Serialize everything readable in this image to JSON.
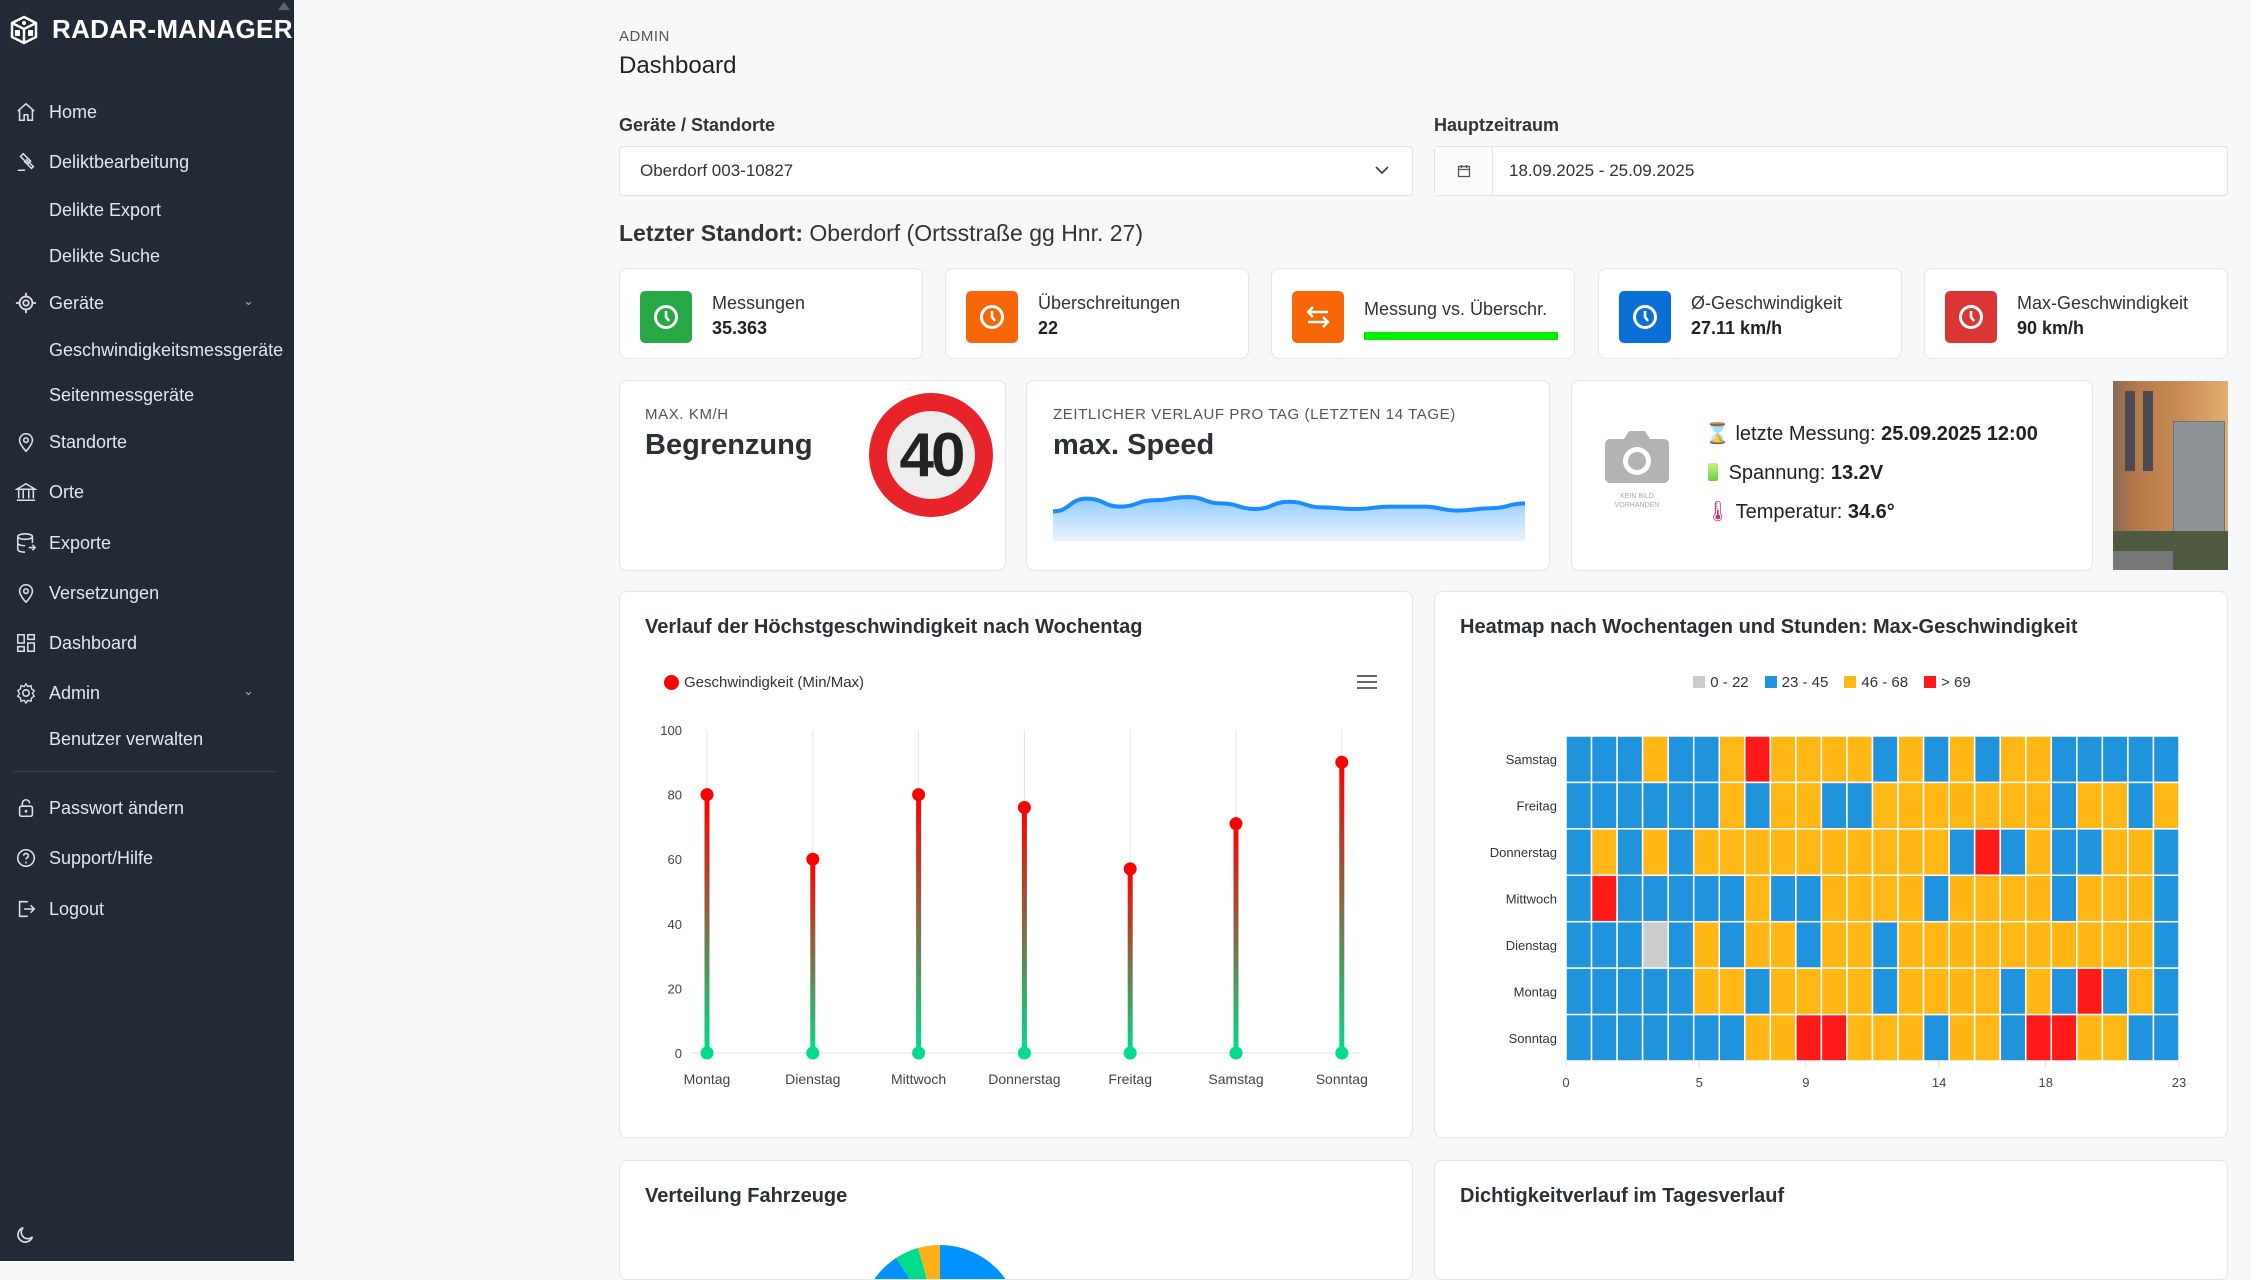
{
  "app": {
    "title": "RADAR-MANAGER"
  },
  "sidebar": {
    "items": [
      {
        "label": "Home",
        "icon": "home-icon"
      },
      {
        "label": "Deliktbearbeitung",
        "icon": "gavel-icon"
      },
      {
        "label": "Delikte Export",
        "icon": ""
      },
      {
        "label": "Delikte Suche",
        "icon": ""
      },
      {
        "label": "Geräte",
        "icon": "target-icon",
        "expandable": true
      },
      {
        "label": "Geschwindigkeitsmessgeräte",
        "icon": ""
      },
      {
        "label": "Seitenmessgeräte",
        "icon": ""
      },
      {
        "label": "Standorte",
        "icon": "location-pin-icon"
      },
      {
        "label": "Orte",
        "icon": "bank-icon"
      },
      {
        "label": "Exporte",
        "icon": "database-icon"
      },
      {
        "label": "Versetzungen",
        "icon": "location-pin-icon"
      },
      {
        "label": "Dashboard",
        "icon": "grid-icon"
      },
      {
        "label": "Admin",
        "icon": "gear-icon",
        "expandable": true
      },
      {
        "label": "Benutzer verwalten",
        "icon": ""
      },
      {
        "label": "Passwort ändern",
        "icon": "lock-icon"
      },
      {
        "label": "Support/Hilfe",
        "icon": "help-icon"
      },
      {
        "label": "Logout",
        "icon": "logout-icon"
      }
    ]
  },
  "header": {
    "breadcrumb": "ADMIN",
    "title": "Dashboard"
  },
  "filters": {
    "device_label": "Geräte / Standorte",
    "device_value": "Oberdorf 003-10827",
    "period_label": "Hauptzeitraum",
    "period_value": "18.09.2025 - 25.09.2025"
  },
  "location": {
    "label": "Letzter Standort:",
    "value": "Oberdorf (Ortsstraße gg Hnr. 27)"
  },
  "stats": [
    {
      "title": "Messungen",
      "value": "35.363",
      "color": "#28a745",
      "icon": "clock-icon"
    },
    {
      "title": "Überschreitungen",
      "value": "22",
      "color": "#f76707",
      "icon": "clock-icon"
    },
    {
      "title": "Messung vs. Überschr.",
      "progress_percent": 100,
      "bar_color": "#00ee00",
      "color": "#f76707",
      "icon": "arrows-exchange-icon"
    },
    {
      "title": "Ø-Geschwindigkeit",
      "value": "27.11 km/h",
      "color": "#0b6fd8",
      "icon": "clock-icon"
    },
    {
      "title": "Max-Geschwindigkeit",
      "value": "90 km/h",
      "color": "#dc3535",
      "icon": "clock-icon"
    }
  ],
  "limit_card": {
    "caption": "MAX. KM/H",
    "title": "Begrenzung",
    "limit": "40"
  },
  "speed_card": {
    "caption": "ZEITLICHER VERLAUF PRO TAG (LETZTEN 14 TAGE)",
    "title": "max. Speed",
    "sparkline": [
      52,
      68,
      58,
      66,
      70,
      62,
      55,
      64,
      57,
      55,
      58,
      58,
      53,
      56,
      62
    ]
  },
  "device_card": {
    "no_image_text_1": "KEIN BILD",
    "no_image_text_2": "VORHANDEN",
    "last_label": "letzte Messung:",
    "last_value": "25.09.2025 12:00",
    "voltage_label": "Spannung:",
    "voltage_value": "13.2V",
    "temp_label": "Temperatur:",
    "temp_value": "34.6°"
  },
  "chart_data": [
    {
      "type": "lollipop",
      "title": "Verlauf der Höchstgeschwindigkeit nach Wochentag",
      "legend": "Geschwindigkeit (Min/Max)",
      "categories": [
        "Montag",
        "Dienstag",
        "Mittwoch",
        "Donnerstag",
        "Freitag",
        "Samstag",
        "Sonntag"
      ],
      "min": [
        0,
        0,
        0,
        0,
        0,
        0,
        0
      ],
      "max": [
        80,
        60,
        80,
        76,
        57,
        71,
        90
      ],
      "ylim": [
        0,
        100
      ],
      "yticks": [
        "0",
        "20",
        "40",
        "60",
        "80",
        "100"
      ],
      "colors": {
        "max": "#ff0000",
        "min": "#00dc8c"
      }
    },
    {
      "type": "heatmap",
      "title": "Heatmap nach Wochentagen und Stunden: Max-Geschwindigkeit",
      "legend": [
        {
          "label": "0 - 22",
          "color": "#cccccc"
        },
        {
          "label": "23 - 45",
          "color": "#1f93dc"
        },
        {
          "label": "46 - 68",
          "color": "#ffb715"
        },
        {
          "label": "> 69",
          "color": "#ff1a1a"
        }
      ],
      "rows": [
        "Samstag",
        "Freitag",
        "Donnerstag",
        "Mittwoch",
        "Dienstag",
        "Montag",
        "Sonntag"
      ],
      "xticks": [
        "0",
        "5",
        "9",
        "14",
        "18",
        "23"
      ],
      "x_range": [
        0,
        23
      ],
      "cells": [
        [
          1,
          1,
          1,
          2,
          1,
          1,
          2,
          3,
          2,
          2,
          2,
          2,
          1,
          2,
          1,
          2,
          1,
          2,
          2,
          1,
          1,
          1,
          1,
          1
        ],
        [
          1,
          1,
          1,
          1,
          1,
          1,
          2,
          1,
          2,
          2,
          1,
          1,
          2,
          2,
          2,
          2,
          2,
          2,
          2,
          1,
          2,
          2,
          1,
          2
        ],
        [
          1,
          2,
          1,
          2,
          1,
          2,
          2,
          2,
          2,
          2,
          2,
          2,
          2,
          2,
          2,
          1,
          3,
          1,
          2,
          1,
          1,
          2,
          2,
          1
        ],
        [
          1,
          3,
          1,
          1,
          1,
          1,
          1,
          2,
          1,
          1,
          2,
          2,
          2,
          2,
          1,
          2,
          2,
          2,
          2,
          1,
          2,
          2,
          2,
          1
        ],
        [
          1,
          1,
          1,
          0,
          1,
          2,
          1,
          2,
          2,
          1,
          2,
          2,
          1,
          2,
          2,
          2,
          2,
          2,
          2,
          2,
          2,
          2,
          2,
          1
        ],
        [
          1,
          1,
          1,
          1,
          1,
          2,
          2,
          1,
          2,
          2,
          2,
          2,
          1,
          2,
          2,
          2,
          2,
          1,
          2,
          1,
          3,
          1,
          2,
          1
        ],
        [
          1,
          1,
          1,
          1,
          1,
          1,
          1,
          2,
          2,
          3,
          3,
          2,
          2,
          2,
          1,
          2,
          2,
          1,
          3,
          3,
          2,
          2,
          1,
          1
        ]
      ]
    },
    {
      "type": "pie",
      "title": "Verteilung Fahrzeuge"
    },
    {
      "type": "line",
      "title": "Dichtigkeitverlauf im Tagesverlauf"
    }
  ]
}
